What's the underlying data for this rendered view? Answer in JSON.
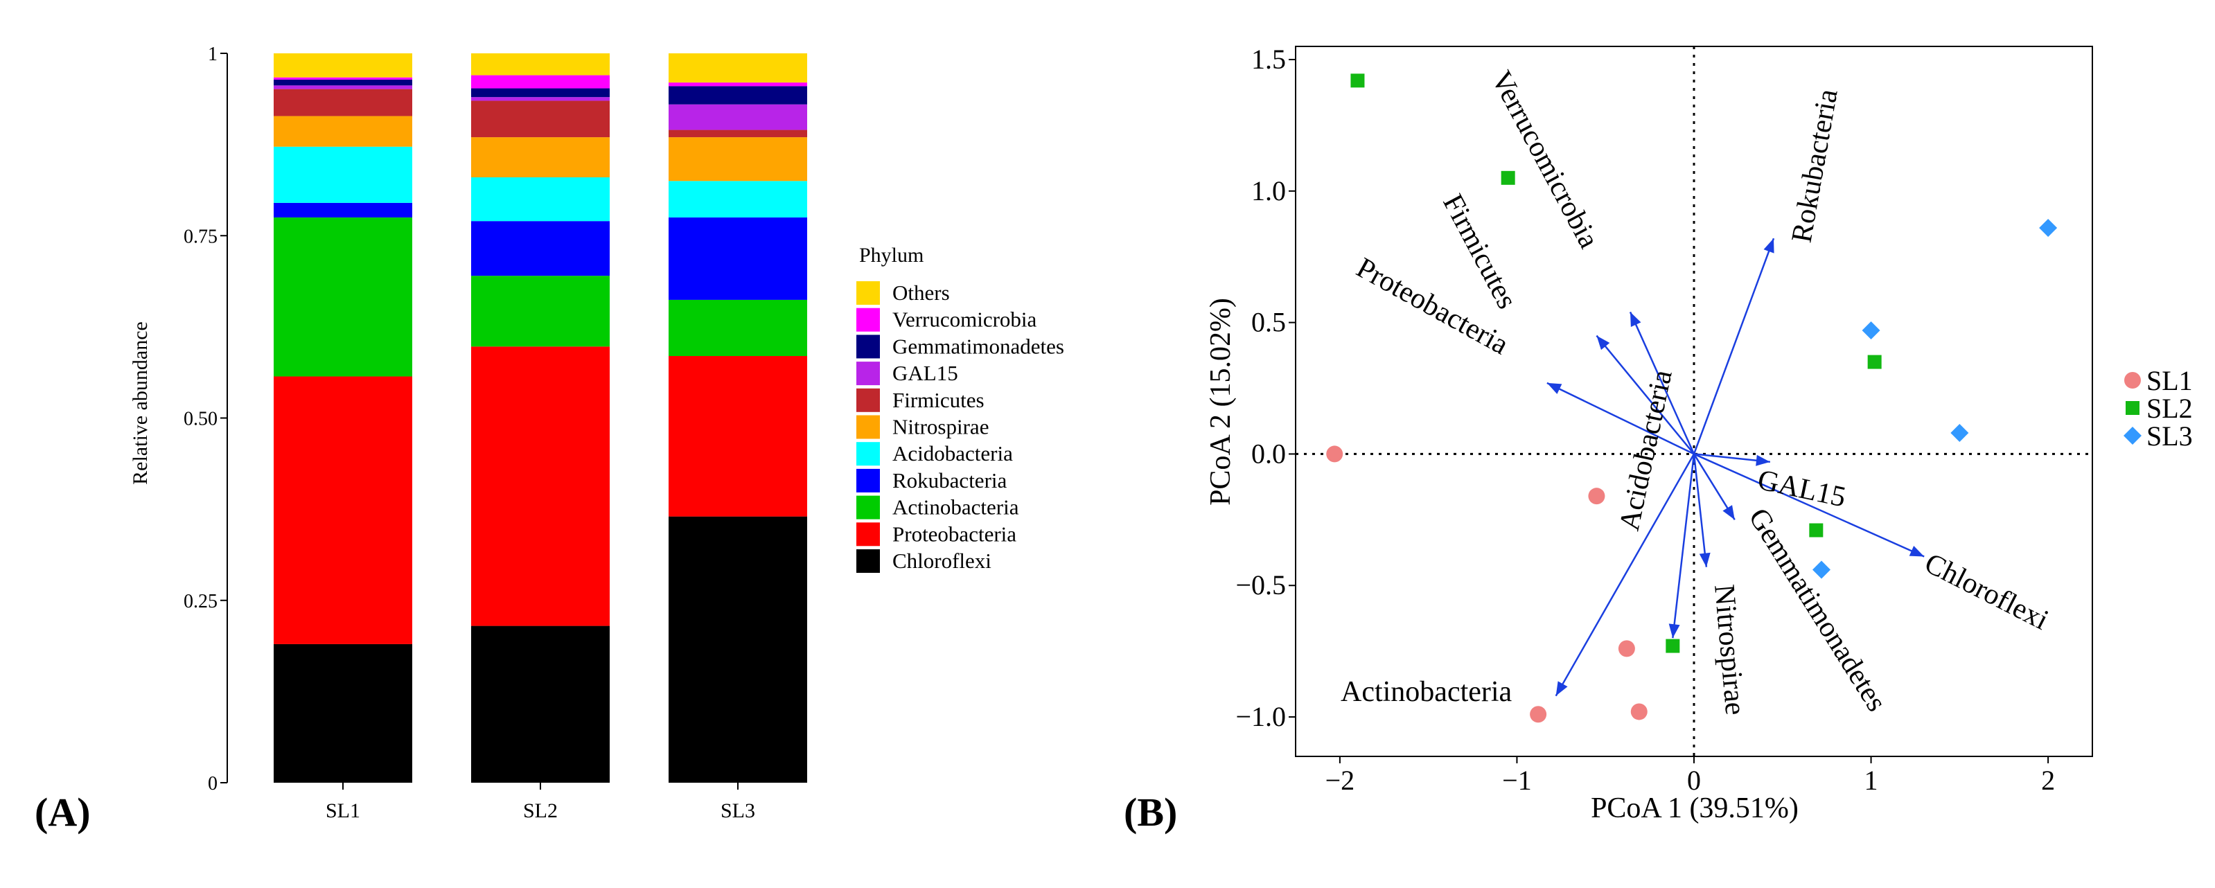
{
  "panel_labels": {
    "a": "(A)",
    "b": "(B)"
  },
  "chart_data": [
    {
      "type": "bar",
      "stacked": true,
      "ylabel": "Relative abundance",
      "xlabel": "",
      "ylim": [
        0,
        1
      ],
      "yticks": [
        "0",
        "0.25",
        "0.50",
        "0.75",
        "1"
      ],
      "ytick_values": [
        0,
        0.25,
        0.5,
        0.75,
        1
      ],
      "categories": [
        "SL1",
        "SL2",
        "SL3"
      ],
      "legend_title": "Phylum",
      "legend_position": "right",
      "series": [
        {
          "name": "Chloroflexi",
          "color": "#000000",
          "values": [
            0.19,
            0.215,
            0.365
          ]
        },
        {
          "name": "Proteobacteria",
          "color": "#ff0000",
          "values": [
            0.367,
            0.383,
            0.22
          ]
        },
        {
          "name": "Actinobacteria",
          "color": "#00cc00",
          "values": [
            0.218,
            0.097,
            0.077
          ]
        },
        {
          "name": "Rokubacteria",
          "color": "#0000ff",
          "values": [
            0.02,
            0.075,
            0.113
          ]
        },
        {
          "name": "Acidobacteria",
          "color": "#00ffff",
          "values": [
            0.077,
            0.06,
            0.05
          ]
        },
        {
          "name": "Nitrospirae",
          "color": "#ffa500",
          "values": [
            0.042,
            0.055,
            0.06
          ]
        },
        {
          "name": "Firmicutes",
          "color": "#c0282d",
          "values": [
            0.037,
            0.05,
            0.01
          ]
        },
        {
          "name": "GAL15",
          "color": "#b824e8",
          "values": [
            0.005,
            0.005,
            0.035
          ]
        },
        {
          "name": "Gemmatimonadetes",
          "color": "#000080",
          "values": [
            0.008,
            0.012,
            0.025
          ]
        },
        {
          "name": "Verrucomicrobia",
          "color": "#ff00ff",
          "values": [
            0.003,
            0.018,
            0.005
          ]
        },
        {
          "name": "Others",
          "color": "#ffd700",
          "values": [
            0.033,
            0.03,
            0.04
          ]
        }
      ]
    },
    {
      "type": "scatter",
      "subtype": "biplot",
      "xlabel": "PCoA 1 (39.51%)",
      "ylabel": "PCoA 2 (15.02%)",
      "xlim": [
        -2.25,
        2.25
      ],
      "ylim": [
        -1.15,
        1.55
      ],
      "xticks": [
        "−2",
        "−1",
        "0",
        "1",
        "2"
      ],
      "xtick_values": [
        -2,
        -1,
        0,
        1,
        2
      ],
      "yticks": [
        "−1.0",
        "−0.5",
        "0.0",
        "0.5",
        "1.0",
        "1.5"
      ],
      "ytick_values": [
        -1,
        -0.5,
        0,
        0.5,
        1,
        1.5
      ],
      "legend_position": "right",
      "groups": [
        {
          "name": "SL1",
          "color": "#f08080",
          "marker": "circle",
          "points": [
            [
              -2.03,
              0.0
            ],
            [
              -0.55,
              -0.16
            ],
            [
              -0.38,
              -0.74
            ],
            [
              -0.31,
              -0.98
            ],
            [
              -0.88,
              -0.99
            ]
          ]
        },
        {
          "name": "SL2",
          "color": "#12b812",
          "marker": "square",
          "points": [
            [
              -1.9,
              1.42
            ],
            [
              -1.05,
              1.05
            ],
            [
              1.02,
              0.35
            ],
            [
              0.69,
              -0.29
            ],
            [
              -0.12,
              -0.73
            ]
          ]
        },
        {
          "name": "SL3",
          "color": "#3399ff",
          "marker": "diamond",
          "points": [
            [
              2.0,
              0.86
            ],
            [
              1.0,
              0.47
            ],
            [
              1.5,
              0.08
            ],
            [
              0.72,
              -0.44
            ]
          ]
        }
      ],
      "arrows": [
        {
          "name": "Verrucomicrobia",
          "end": [
            -0.36,
            0.54
          ]
        },
        {
          "name": "Rokubacteria",
          "end": [
            0.45,
            0.82
          ]
        },
        {
          "name": "Firmicutes",
          "end": [
            -0.55,
            0.45
          ]
        },
        {
          "name": "Proteobacteria",
          "end": [
            -0.83,
            0.27
          ]
        },
        {
          "name": "GAL15",
          "end": [
            0.43,
            -0.03
          ]
        },
        {
          "name": "Chloroflexi",
          "end": [
            1.3,
            -0.39
          ]
        },
        {
          "name": "Gemmatimonadetes",
          "end": [
            0.23,
            -0.25
          ]
        },
        {
          "name": "Nitrospirae",
          "end": [
            0.07,
            -0.43
          ]
        },
        {
          "name": "Acidobacteria",
          "end": [
            -0.12,
            -0.7
          ]
        },
        {
          "name": "Actinobacteria",
          "end": [
            -0.78,
            -0.92
          ]
        }
      ]
    }
  ]
}
